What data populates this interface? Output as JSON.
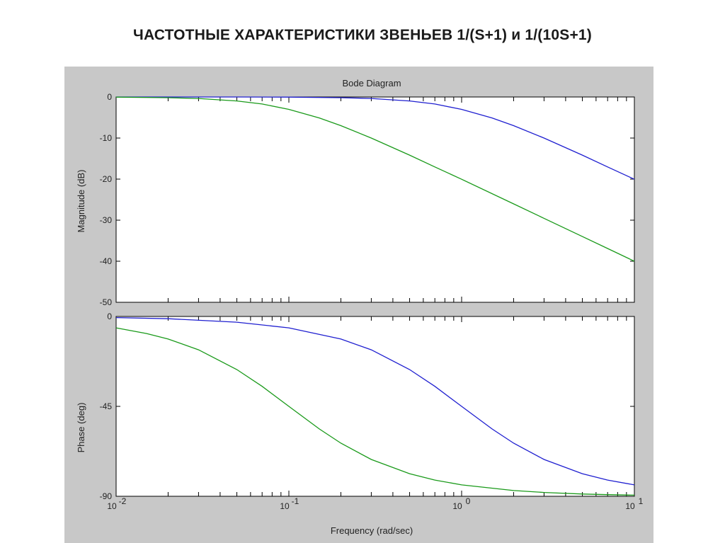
{
  "slide": {
    "title": "ЧАСТОТНЫЕ  ХАРАКТЕРИСТИКИ  ЗВЕНЬЕВ  1/(S+1) и 1/(10S+1)"
  },
  "colors": {
    "figure_background": "#c8c8c8",
    "axes_background": "#ffffff",
    "series_1": "#1f1fd0",
    "series_2": "#1a9a1a"
  },
  "chart_data": [
    {
      "type": "line",
      "title": "Bode Diagram",
      "ylabel": "Magnitude (dB)",
      "xlabel": "",
      "xscale": "log",
      "xlim": [
        0.01,
        10
      ],
      "ylim": [
        -50,
        0
      ],
      "yticks": [
        0,
        -10,
        -20,
        -30,
        -40,
        -50
      ],
      "ytick_labels": [
        "0",
        "-10",
        "-20",
        "-30",
        "-40",
        "-50"
      ],
      "grid": false,
      "series": [
        {
          "color": "#1f1fd0",
          "x": [
            0.01,
            0.02,
            0.05,
            0.1,
            0.2,
            0.3,
            0.5,
            0.7,
            1,
            1.5,
            2,
            3,
            5,
            7,
            10
          ],
          "y": [
            0,
            0,
            0,
            -0.04,
            -0.17,
            -0.37,
            -0.97,
            -1.7,
            -3.01,
            -5.1,
            -6.99,
            -10,
            -14.15,
            -17.03,
            -20.04
          ]
        },
        {
          "color": "#1a9a1a",
          "x": [
            0.01,
            0.02,
            0.03,
            0.05,
            0.07,
            0.1,
            0.15,
            0.2,
            0.3,
            0.5,
            0.7,
            1,
            2,
            3,
            5,
            7,
            10
          ],
          "y": [
            -0.04,
            -0.17,
            -0.37,
            -0.97,
            -1.7,
            -3.01,
            -5.1,
            -6.99,
            -10,
            -14.15,
            -17.03,
            -20.04,
            -26.03,
            -29.55,
            -33.98,
            -36.9,
            -40
          ]
        }
      ]
    },
    {
      "type": "line",
      "title": "",
      "ylabel": "Phase (deg)",
      "xlabel": "Frequency  (rad/sec)",
      "xscale": "log",
      "xlim": [
        0.01,
        10
      ],
      "ylim": [
        -90,
        0
      ],
      "yticks": [
        0,
        -45,
        -90
      ],
      "ytick_labels": [
        "0",
        "-45",
        "-90"
      ],
      "xtick_labels": [
        {
          "base": "10",
          "exp": "-2"
        },
        {
          "base": "10",
          "exp": "-1"
        },
        {
          "base": "10",
          "exp": "0"
        },
        {
          "base": "10",
          "exp": "1"
        }
      ],
      "grid": false,
      "series": [
        {
          "color": "#1f1fd0",
          "x": [
            0.01,
            0.02,
            0.05,
            0.1,
            0.2,
            0.3,
            0.5,
            0.7,
            1,
            1.5,
            2,
            3,
            5,
            7,
            10
          ],
          "y": [
            -0.57,
            -1.15,
            -2.86,
            -5.71,
            -11.31,
            -16.7,
            -26.57,
            -34.99,
            -45,
            -56.31,
            -63.43,
            -71.57,
            -78.69,
            -81.87,
            -84.29
          ]
        },
        {
          "color": "#1a9a1a",
          "x": [
            0.01,
            0.015,
            0.02,
            0.03,
            0.05,
            0.07,
            0.1,
            0.15,
            0.2,
            0.3,
            0.5,
            0.7,
            1,
            2,
            3,
            5,
            7,
            10
          ],
          "y": [
            -5.71,
            -8.53,
            -11.31,
            -16.7,
            -26.57,
            -34.99,
            -45,
            -56.31,
            -63.43,
            -71.57,
            -78.69,
            -81.87,
            -84.29,
            -87.14,
            -88.09,
            -88.85,
            -89.18,
            -89.43
          ]
        }
      ]
    }
  ]
}
